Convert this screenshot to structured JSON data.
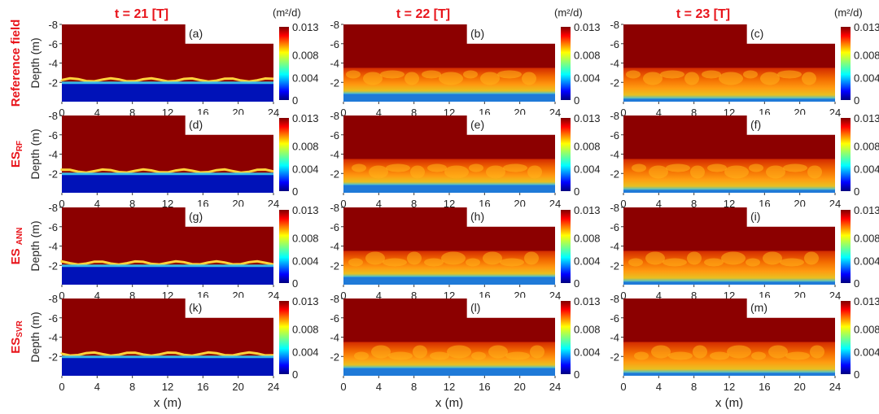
{
  "chart_data": {
    "type": "heatmap",
    "columns": [
      {
        "title": "t = 21 [T]"
      },
      {
        "title": "t = 22 [T]"
      },
      {
        "title": "t = 23 [T]"
      }
    ],
    "rows": [
      {
        "label": "Reference field",
        "sub": ""
      },
      {
        "label": "ES",
        "sub": "RF"
      },
      {
        "label": "ES ",
        "sub": "ANN"
      },
      {
        "label": "ES",
        "sub": "SVR"
      }
    ],
    "panel_labels": [
      [
        "(a)",
        "(b)",
        "(c)"
      ],
      [
        "(d)",
        "(e)",
        "(f)"
      ],
      [
        "(g)",
        "(h)",
        "(i)"
      ],
      [
        "(k)",
        "(l)",
        "(m)"
      ]
    ],
    "ylabel": "Depth (m)",
    "xlabel": "x (m)",
    "xlim": [
      0,
      24
    ],
    "ylim": [
      -8,
      0
    ],
    "xticks": [
      "0",
      "4",
      "8",
      "12",
      "16",
      "20",
      "24"
    ],
    "yticks": [
      "-8",
      "-6",
      "-4",
      "-2"
    ],
    "colorbar": {
      "unit": "(m²/d)",
      "range": [
        0,
        0.013
      ],
      "ticks": [
        "0.013",
        "0.008",
        "0.004",
        "0"
      ]
    },
    "water_level_depth": [
      -2.0,
      -0.8,
      -0.3
    ]
  },
  "colors": {
    "title_red": "#e8141b",
    "field_dark": "#8c0000",
    "plume_orange": "#f05000",
    "low_blue": "#0012b8"
  }
}
